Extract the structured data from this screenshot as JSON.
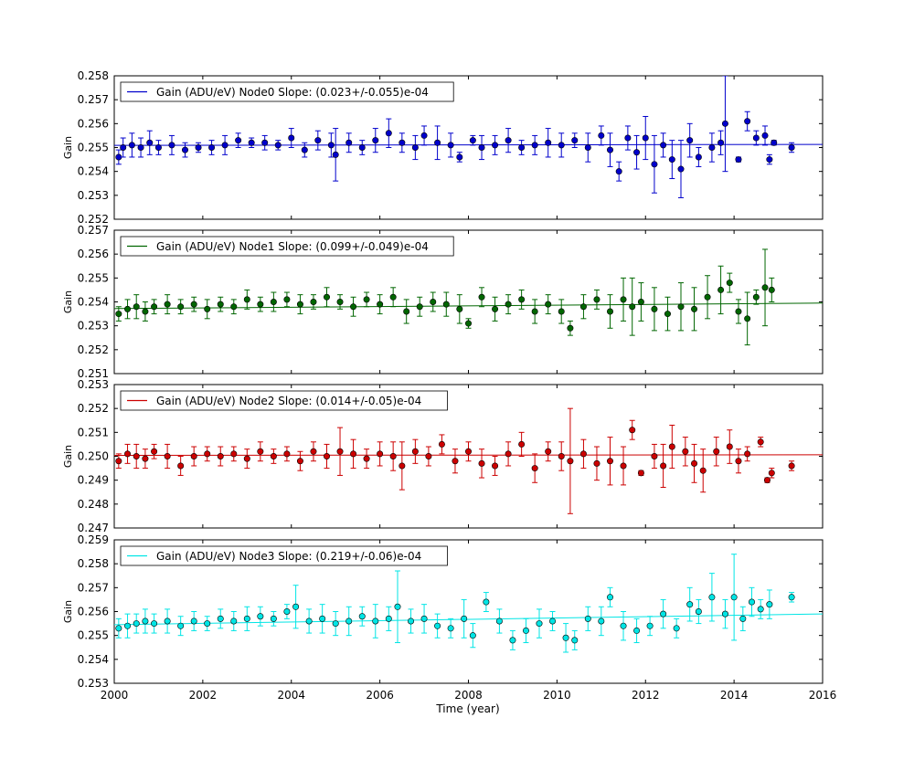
{
  "figure": {
    "xlabel": "Time (year)",
    "ylabel": "Gain",
    "xlim": [
      2000,
      2016
    ],
    "x_ticks": [
      "2000",
      "2002",
      "2004",
      "2006",
      "2008",
      "2010",
      "2012",
      "2014",
      "2016"
    ]
  },
  "chart_data": [
    {
      "type": "scatter",
      "series": [
        {
          "name": "Gain (ADU/eV) Node0 Slope: (0.023+/-0.055)e-04",
          "color": "#0000cc"
        }
      ],
      "ylabel": "Gain",
      "ylim": [
        0.252,
        0.258
      ],
      "y_ticks": [
        "0.252",
        "0.253",
        "0.254",
        "0.255",
        "0.256",
        "0.257",
        "0.258"
      ],
      "legend_position": "top-left",
      "fit": {
        "x": [
          2000,
          2016
        ],
        "y": [
          0.25509,
          0.25513
        ]
      },
      "points": [
        [
          2000.1,
          0.2546,
          0.0003
        ],
        [
          2000.2,
          0.255,
          0.0004
        ],
        [
          2000.4,
          0.2551,
          0.0005
        ],
        [
          2000.6,
          0.255,
          0.0004
        ],
        [
          2000.8,
          0.2552,
          0.0005
        ],
        [
          2001.0,
          0.255,
          0.0003
        ],
        [
          2001.3,
          0.2551,
          0.0004
        ],
        [
          2001.6,
          0.2549,
          0.0003
        ],
        [
          2001.9,
          0.255,
          0.0002
        ],
        [
          2002.2,
          0.255,
          0.0003
        ],
        [
          2002.5,
          0.2551,
          0.0004
        ],
        [
          2002.8,
          0.2553,
          0.0003
        ],
        [
          2003.1,
          0.2552,
          0.0002
        ],
        [
          2003.4,
          0.2552,
          0.0003
        ],
        [
          2003.7,
          0.2551,
          0.0002
        ],
        [
          2004.0,
          0.2554,
          0.0004
        ],
        [
          2004.3,
          0.2549,
          0.0003
        ],
        [
          2004.6,
          0.2553,
          0.0004
        ],
        [
          2004.9,
          0.2551,
          0.0005
        ],
        [
          2005.0,
          0.2547,
          0.0011
        ],
        [
          2005.3,
          0.2552,
          0.0004
        ],
        [
          2005.6,
          0.255,
          0.0003
        ],
        [
          2005.9,
          0.2553,
          0.0005
        ],
        [
          2006.2,
          0.2556,
          0.0006
        ],
        [
          2006.5,
          0.2552,
          0.0004
        ],
        [
          2006.8,
          0.255,
          0.0005
        ],
        [
          2007.0,
          0.2555,
          0.0004
        ],
        [
          2007.3,
          0.2552,
          0.0007
        ],
        [
          2007.6,
          0.2551,
          0.0005
        ],
        [
          2007.8,
          0.2546,
          0.0002
        ],
        [
          2008.1,
          0.2553,
          0.0002
        ],
        [
          2008.3,
          0.255,
          0.0005
        ],
        [
          2008.6,
          0.2551,
          0.0004
        ],
        [
          2008.9,
          0.2553,
          0.0005
        ],
        [
          2009.2,
          0.255,
          0.0003
        ],
        [
          2009.5,
          0.2551,
          0.0004
        ],
        [
          2009.8,
          0.2552,
          0.0006
        ],
        [
          2010.1,
          0.2551,
          0.0005
        ],
        [
          2010.4,
          0.2553,
          0.0003
        ],
        [
          2010.7,
          0.255,
          0.0006
        ],
        [
          2011.0,
          0.2555,
          0.0004
        ],
        [
          2011.2,
          0.2549,
          0.0007
        ],
        [
          2011.4,
          0.254,
          0.0004
        ],
        [
          2011.6,
          0.2554,
          0.0005
        ],
        [
          2011.8,
          0.2548,
          0.0007
        ],
        [
          2012.0,
          0.2554,
          0.0009
        ],
        [
          2012.2,
          0.2543,
          0.0012
        ],
        [
          2012.4,
          0.2551,
          0.0005
        ],
        [
          2012.6,
          0.2545,
          0.0008
        ],
        [
          2012.8,
          0.2541,
          0.0012
        ],
        [
          2013.0,
          0.2553,
          0.0007
        ],
        [
          2013.2,
          0.2546,
          0.0004
        ],
        [
          2013.5,
          0.255,
          0.0006
        ],
        [
          2013.7,
          0.2552,
          0.0005
        ],
        [
          2013.8,
          0.256,
          0.002
        ],
        [
          2014.1,
          0.2545,
          0.0001
        ],
        [
          2014.3,
          0.2561,
          0.0004
        ],
        [
          2014.5,
          0.2554,
          0.0003
        ],
        [
          2014.7,
          0.2555,
          0.0004
        ],
        [
          2014.8,
          0.2545,
          0.0002
        ],
        [
          2014.9,
          0.2552,
          0.0001
        ],
        [
          2015.3,
          0.255,
          0.0002
        ]
      ]
    },
    {
      "type": "scatter",
      "series": [
        {
          "name": "Gain (ADU/eV) Node1 Slope: (0.099+/-0.049)e-04",
          "color": "#006600"
        }
      ],
      "ylabel": "Gain",
      "ylim": [
        0.251,
        0.257
      ],
      "y_ticks": [
        "0.251",
        "0.252",
        "0.253",
        "0.254",
        "0.255",
        "0.256",
        "0.257"
      ],
      "legend_position": "top-left",
      "fit": {
        "x": [
          2000,
          2016
        ],
        "y": [
          0.25372,
          0.25395
        ]
      },
      "points": [
        [
          2000.1,
          0.2535,
          0.0003
        ],
        [
          2000.3,
          0.2537,
          0.0004
        ],
        [
          2000.5,
          0.2538,
          0.0005
        ],
        [
          2000.7,
          0.2536,
          0.0004
        ],
        [
          2000.9,
          0.2538,
          0.0003
        ],
        [
          2001.2,
          0.2539,
          0.0004
        ],
        [
          2001.5,
          0.2538,
          0.0003
        ],
        [
          2001.8,
          0.2539,
          0.0003
        ],
        [
          2002.1,
          0.2537,
          0.0004
        ],
        [
          2002.4,
          0.2539,
          0.0003
        ],
        [
          2002.7,
          0.2538,
          0.0003
        ],
        [
          2003.0,
          0.2541,
          0.0004
        ],
        [
          2003.3,
          0.2539,
          0.0003
        ],
        [
          2003.6,
          0.254,
          0.0004
        ],
        [
          2003.9,
          0.2541,
          0.0003
        ],
        [
          2004.2,
          0.2539,
          0.0004
        ],
        [
          2004.5,
          0.254,
          0.0003
        ],
        [
          2004.8,
          0.2542,
          0.0004
        ],
        [
          2005.1,
          0.254,
          0.0003
        ],
        [
          2005.4,
          0.2538,
          0.0004
        ],
        [
          2005.7,
          0.2541,
          0.0003
        ],
        [
          2006.0,
          0.2539,
          0.0004
        ],
        [
          2006.3,
          0.2542,
          0.0004
        ],
        [
          2006.6,
          0.2536,
          0.0005
        ],
        [
          2006.9,
          0.2538,
          0.0004
        ],
        [
          2007.2,
          0.254,
          0.0004
        ],
        [
          2007.5,
          0.2539,
          0.0005
        ],
        [
          2007.8,
          0.2537,
          0.0006
        ],
        [
          2008.0,
          0.2531,
          0.0002
        ],
        [
          2008.3,
          0.2542,
          0.0004
        ],
        [
          2008.6,
          0.2537,
          0.0005
        ],
        [
          2008.9,
          0.2539,
          0.0004
        ],
        [
          2009.2,
          0.2541,
          0.0004
        ],
        [
          2009.5,
          0.2536,
          0.0005
        ],
        [
          2009.8,
          0.2539,
          0.0004
        ],
        [
          2010.1,
          0.2536,
          0.0005
        ],
        [
          2010.3,
          0.2529,
          0.0003
        ],
        [
          2010.6,
          0.2538,
          0.0005
        ],
        [
          2010.9,
          0.2541,
          0.0004
        ],
        [
          2011.2,
          0.2536,
          0.0007
        ],
        [
          2011.5,
          0.2541,
          0.0009
        ],
        [
          2011.7,
          0.2538,
          0.0012
        ],
        [
          2011.9,
          0.254,
          0.0008
        ],
        [
          2012.2,
          0.2537,
          0.0009
        ],
        [
          2012.5,
          0.2535,
          0.0007
        ],
        [
          2012.8,
          0.2538,
          0.001
        ],
        [
          2013.1,
          0.2537,
          0.0009
        ],
        [
          2013.4,
          0.2542,
          0.0009
        ],
        [
          2013.7,
          0.2545,
          0.001
        ],
        [
          2013.9,
          0.2548,
          0.0004
        ],
        [
          2014.1,
          0.2536,
          0.0005
        ],
        [
          2014.3,
          0.2533,
          0.0011
        ],
        [
          2014.5,
          0.2542,
          0.0003
        ],
        [
          2014.7,
          0.2546,
          0.0016
        ],
        [
          2014.85,
          0.2545,
          0.0005
        ]
      ]
    },
    {
      "type": "scatter",
      "series": [
        {
          "name": "Gain (ADU/eV) Node2 Slope: (0.014+/-0.05)e-04",
          "color": "#cc0000"
        }
      ],
      "ylabel": "Gain",
      "ylim": [
        0.247,
        0.253
      ],
      "y_ticks": [
        "0.247",
        "0.248",
        "0.249",
        "0.250",
        "0.251",
        "0.252",
        "0.253"
      ],
      "legend_position": "top-left",
      "fit": {
        "x": [
          2000,
          2016
        ],
        "y": [
          0.25004,
          0.25006
        ]
      },
      "points": [
        [
          2000.1,
          0.2498,
          0.0003
        ],
        [
          2000.3,
          0.2501,
          0.0004
        ],
        [
          2000.5,
          0.25,
          0.0005
        ],
        [
          2000.7,
          0.2499,
          0.0004
        ],
        [
          2000.9,
          0.2502,
          0.0003
        ],
        [
          2001.2,
          0.25,
          0.0005
        ],
        [
          2001.5,
          0.2496,
          0.0004
        ],
        [
          2001.8,
          0.25,
          0.0004
        ],
        [
          2002.1,
          0.2501,
          0.0003
        ],
        [
          2002.4,
          0.25,
          0.0004
        ],
        [
          2002.7,
          0.2501,
          0.0003
        ],
        [
          2003.0,
          0.2499,
          0.0004
        ],
        [
          2003.3,
          0.2502,
          0.0004
        ],
        [
          2003.6,
          0.25,
          0.0003
        ],
        [
          2003.9,
          0.2501,
          0.0003
        ],
        [
          2004.2,
          0.2498,
          0.0004
        ],
        [
          2004.5,
          0.2502,
          0.0004
        ],
        [
          2004.8,
          0.25,
          0.0005
        ],
        [
          2005.1,
          0.2502,
          0.001
        ],
        [
          2005.4,
          0.2501,
          0.0006
        ],
        [
          2005.7,
          0.2499,
          0.0004
        ],
        [
          2006.0,
          0.2501,
          0.0005
        ],
        [
          2006.3,
          0.25,
          0.0006
        ],
        [
          2006.5,
          0.2496,
          0.001
        ],
        [
          2006.8,
          0.2502,
          0.0005
        ],
        [
          2007.1,
          0.25,
          0.0004
        ],
        [
          2007.4,
          0.2505,
          0.0004
        ],
        [
          2007.7,
          0.2498,
          0.0005
        ],
        [
          2008.0,
          0.2502,
          0.0004
        ],
        [
          2008.3,
          0.2497,
          0.0006
        ],
        [
          2008.6,
          0.2496,
          0.0004
        ],
        [
          2008.9,
          0.2501,
          0.0005
        ],
        [
          2009.2,
          0.2505,
          0.0005
        ],
        [
          2009.5,
          0.2495,
          0.0006
        ],
        [
          2009.8,
          0.2502,
          0.0004
        ],
        [
          2010.1,
          0.25,
          0.0006
        ],
        [
          2010.3,
          0.2498,
          0.0022
        ],
        [
          2010.6,
          0.2501,
          0.0006
        ],
        [
          2010.9,
          0.2497,
          0.0007
        ],
        [
          2011.2,
          0.2498,
          0.001
        ],
        [
          2011.5,
          0.2496,
          0.0008
        ],
        [
          2011.7,
          0.2511,
          0.0004
        ],
        [
          2011.9,
          0.2493,
          0.0001
        ],
        [
          2012.2,
          0.25,
          0.0005
        ],
        [
          2012.4,
          0.2496,
          0.0009
        ],
        [
          2012.6,
          0.2504,
          0.0009
        ],
        [
          2012.9,
          0.2502,
          0.0006
        ],
        [
          2013.1,
          0.2497,
          0.0008
        ],
        [
          2013.3,
          0.2494,
          0.0009
        ],
        [
          2013.6,
          0.2502,
          0.0006
        ],
        [
          2013.9,
          0.2504,
          0.0007
        ],
        [
          2014.1,
          0.2498,
          0.0005
        ],
        [
          2014.3,
          0.2501,
          0.0003
        ],
        [
          2014.6,
          0.2506,
          0.0002
        ],
        [
          2014.75,
          0.249,
          0.0001
        ],
        [
          2014.85,
          0.2493,
          0.0002
        ],
        [
          2015.3,
          0.2496,
          0.0002
        ]
      ]
    },
    {
      "type": "scatter",
      "series": [
        {
          "name": "Gain (ADU/eV) Node3 Slope: (0.219+/-0.06)e-04",
          "color": "#00e5e5"
        }
      ],
      "ylabel": "Gain",
      "xlabel": "Time (year)",
      "ylim": [
        0.253,
        0.259
      ],
      "y_ticks": [
        "0.253",
        "0.254",
        "0.255",
        "0.256",
        "0.257",
        "0.258",
        "0.259"
      ],
      "legend_position": "top-left",
      "fit": {
        "x": [
          2000,
          2016
        ],
        "y": [
          0.25545,
          0.2559
        ]
      },
      "points": [
        [
          2000.1,
          0.2553,
          0.0004
        ],
        [
          2000.3,
          0.2554,
          0.0005
        ],
        [
          2000.5,
          0.2555,
          0.0004
        ],
        [
          2000.7,
          0.2556,
          0.0005
        ],
        [
          2000.9,
          0.2555,
          0.0004
        ],
        [
          2001.2,
          0.2556,
          0.0005
        ],
        [
          2001.5,
          0.2554,
          0.0004
        ],
        [
          2001.8,
          0.2556,
          0.0004
        ],
        [
          2002.1,
          0.2555,
          0.0003
        ],
        [
          2002.4,
          0.2557,
          0.0004
        ],
        [
          2002.7,
          0.2556,
          0.0004
        ],
        [
          2003.0,
          0.2557,
          0.0005
        ],
        [
          2003.3,
          0.2558,
          0.0004
        ],
        [
          2003.6,
          0.2557,
          0.0003
        ],
        [
          2003.9,
          0.256,
          0.0003
        ],
        [
          2004.1,
          0.2562,
          0.0009
        ],
        [
          2004.4,
          0.2556,
          0.0005
        ],
        [
          2004.7,
          0.2557,
          0.0006
        ],
        [
          2005.0,
          0.2555,
          0.0005
        ],
        [
          2005.3,
          0.2556,
          0.0006
        ],
        [
          2005.6,
          0.2558,
          0.0004
        ],
        [
          2005.9,
          0.2556,
          0.0007
        ],
        [
          2006.2,
          0.2557,
          0.0005
        ],
        [
          2006.4,
          0.2562,
          0.0015
        ],
        [
          2006.7,
          0.2556,
          0.0005
        ],
        [
          2007.0,
          0.2557,
          0.0006
        ],
        [
          2007.3,
          0.2554,
          0.0005
        ],
        [
          2007.6,
          0.2553,
          0.0004
        ],
        [
          2007.9,
          0.2557,
          0.0008
        ],
        [
          2008.1,
          0.255,
          0.0005
        ],
        [
          2008.4,
          0.2564,
          0.0004
        ],
        [
          2008.7,
          0.2556,
          0.0005
        ],
        [
          2009.0,
          0.2548,
          0.0004
        ],
        [
          2009.3,
          0.2552,
          0.0005
        ],
        [
          2009.6,
          0.2555,
          0.0006
        ],
        [
          2009.9,
          0.2556,
          0.0004
        ],
        [
          2010.2,
          0.2549,
          0.0006
        ],
        [
          2010.4,
          0.2548,
          0.0004
        ],
        [
          2010.7,
          0.2557,
          0.0005
        ],
        [
          2011.0,
          0.2556,
          0.0006
        ],
        [
          2011.2,
          0.2566,
          0.0004
        ],
        [
          2011.5,
          0.2554,
          0.0006
        ],
        [
          2011.8,
          0.2552,
          0.0005
        ],
        [
          2012.1,
          0.2554,
          0.0004
        ],
        [
          2012.4,
          0.2559,
          0.0006
        ],
        [
          2012.7,
          0.2553,
          0.0004
        ],
        [
          2013.0,
          0.2563,
          0.0007
        ],
        [
          2013.2,
          0.256,
          0.0005
        ],
        [
          2013.5,
          0.2566,
          0.001
        ],
        [
          2013.8,
          0.2559,
          0.0006
        ],
        [
          2014.0,
          0.2566,
          0.0018
        ],
        [
          2014.2,
          0.2557,
          0.0005
        ],
        [
          2014.4,
          0.2564,
          0.0006
        ],
        [
          2014.6,
          0.2561,
          0.0004
        ],
        [
          2014.8,
          0.2563,
          0.0006
        ],
        [
          2015.3,
          0.2566,
          0.0002
        ]
      ]
    }
  ]
}
